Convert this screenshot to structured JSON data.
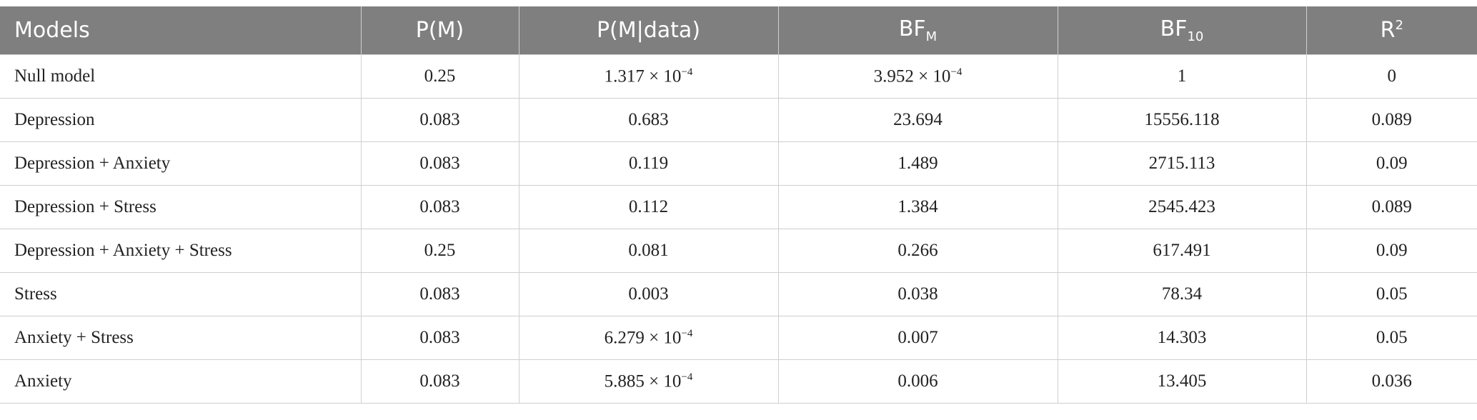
{
  "table": {
    "header": [
      "Models",
      "P(M)",
      "P(M|data)",
      {
        "text": "BF",
        "sub": "M"
      },
      {
        "text": "BF",
        "sub": "10"
      },
      {
        "text": "R",
        "sup": "2"
      }
    ],
    "rows": [
      [
        "Null model",
        "0.25",
        {
          "text": "1.317 × 10",
          "sup": "−4"
        },
        {
          "text": "3.952 × 10",
          "sup": "−4"
        },
        "1",
        "0"
      ],
      [
        "Depression",
        "0.083",
        "0.683",
        "23.694",
        "15556.118",
        "0.089"
      ],
      [
        "Depression + Anxiety",
        "0.083",
        "0.119",
        "1.489",
        "2715.113",
        "0.09"
      ],
      [
        "Depression + Stress",
        "0.083",
        "0.112",
        "1.384",
        "2545.423",
        "0.089"
      ],
      [
        "Depression + Anxiety + Stress",
        "0.25",
        "0.081",
        "0.266",
        "617.491",
        "0.09"
      ],
      [
        "Stress",
        "0.083",
        "0.003",
        "0.038",
        "78.34",
        "0.05"
      ],
      [
        "Anxiety + Stress",
        "0.083",
        {
          "text": "6.279 × 10",
          "sup": "−4"
        },
        "0.007",
        "14.303",
        "0.05"
      ],
      [
        "Anxiety",
        "0.083",
        {
          "text": "5.885 × 10",
          "sup": "−4"
        },
        "0.006",
        "13.405",
        "0.036"
      ]
    ]
  }
}
